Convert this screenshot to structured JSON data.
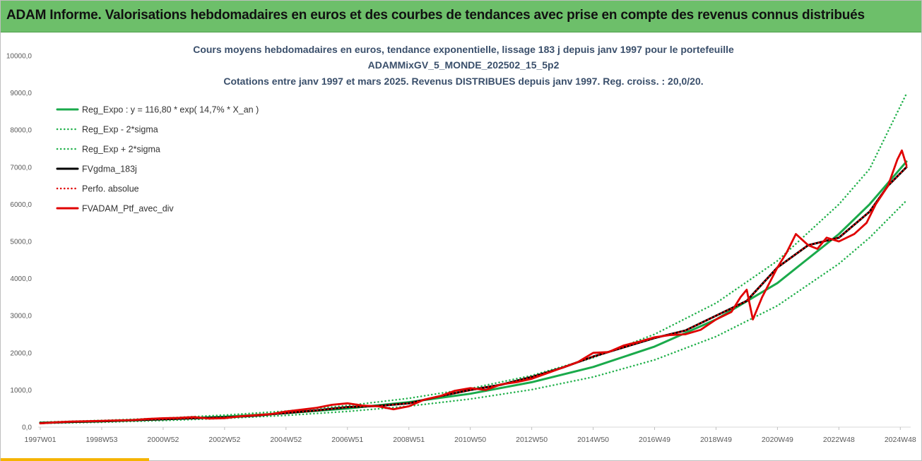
{
  "header": {
    "title": "ADAM Informe. Valorisations hebdomadaires en euros et des courbes de tendances avec prise en compte des revenus connus distribués"
  },
  "colors": {
    "header_bg": "#6dbf6a",
    "reg_expo": "#1aaa4b",
    "reg_sigma": "#22b14c",
    "fvgdma": "#000000",
    "perfo": "#e00000",
    "fvadam": "#e00000"
  },
  "chart_data": {
    "type": "line",
    "title_lines": [
      "Cours moyens hebdomadaires  en euros,  tendance exponentielle, lissage 183 j depuis janv 1997 pour  le portefeuille",
      "ADAMMixGV_5_MONDE_202502_15_5p2",
      "Cotations  entre janv 1997 et mars 2025. Revenus DISTRIBUES depuis janv 1997. Reg. croiss. : 20,0/20."
    ],
    "xlabel": "",
    "ylabel": "",
    "x_range": [
      1997.0,
      2025.2
    ],
    "ylim": [
      0,
      10000
    ],
    "y_ticks": [
      "0,0",
      "1000,0",
      "2000,0",
      "3000,0",
      "4000,0",
      "5000,0",
      "6000,0",
      "7000,0",
      "8000,0",
      "9000,0",
      "10000,0"
    ],
    "x_ticks": [
      {
        "x": 1997.0,
        "label": "1997W01"
      },
      {
        "x": 1999.0,
        "label": "1998W53"
      },
      {
        "x": 2001.0,
        "label": "2000W52"
      },
      {
        "x": 2003.0,
        "label": "2002W52"
      },
      {
        "x": 2005.0,
        "label": "2004W52"
      },
      {
        "x": 2007.0,
        "label": "2006W51"
      },
      {
        "x": 2009.0,
        "label": "2008W51"
      },
      {
        "x": 2011.0,
        "label": "2010W50"
      },
      {
        "x": 2013.0,
        "label": "2012W50"
      },
      {
        "x": 2015.0,
        "label": "2014W50"
      },
      {
        "x": 2017.0,
        "label": "2016W49"
      },
      {
        "x": 2019.0,
        "label": "2018W49"
      },
      {
        "x": 2021.0,
        "label": "2020W49"
      },
      {
        "x": 2023.0,
        "label": "2022W48"
      },
      {
        "x": 2025.0,
        "label": "2024W48"
      }
    ],
    "grid": false,
    "legend_position": "top-left",
    "series": [
      {
        "name": "Reg_Expo : y = 116,80 * exp( 14,7% *  X_an )",
        "style": "solid-thick",
        "color": "#1aaa4b",
        "x": [
          1997,
          1999,
          2001,
          2003,
          2005,
          2007,
          2009,
          2011,
          2013,
          2015,
          2017,
          2019,
          2021,
          2023,
          2024,
          2025.2
        ],
        "values": [
          117,
          156,
          209,
          280,
          375,
          502,
          673,
          900,
          1210,
          1620,
          2170,
          2900,
          3880,
          5200,
          6000,
          7150
        ]
      },
      {
        "name": "Reg_Exp - 2*sigma",
        "style": "dotted",
        "color": "#22b14c",
        "x": [
          1997,
          1999,
          2001,
          2003,
          2005,
          2007,
          2009,
          2011,
          2013,
          2015,
          2017,
          2019,
          2021,
          2023,
          2024,
          2025.2
        ],
        "values": [
          100,
          132,
          176,
          235,
          315,
          422,
          565,
          756,
          1010,
          1350,
          1810,
          2440,
          3270,
          4400,
          5100,
          6100
        ]
      },
      {
        "name": "Reg_Exp + 2*sigma",
        "style": "dotted",
        "color": "#22b14c",
        "x": [
          1997,
          1999,
          2001,
          2003,
          2005,
          2007,
          2009,
          2011,
          2013,
          2015,
          2017,
          2019,
          2021,
          2023,
          2024,
          2025.2
        ],
        "values": [
          134,
          180,
          241,
          323,
          432,
          579,
          776,
          1040,
          1390,
          1870,
          2500,
          3340,
          4480,
          6000,
          6950,
          8980
        ]
      },
      {
        "name": "FVgdma_183j",
        "style": "solid-thick",
        "color": "#000000",
        "x": [
          1997,
          1998,
          1999,
          2000,
          2001,
          2002,
          2003,
          2004,
          2005,
          2006,
          2007,
          2008,
          2009,
          2010,
          2011,
          2012,
          2013,
          2014,
          2015,
          2016,
          2017,
          2018,
          2019,
          2020,
          2021,
          2022,
          2023,
          2024,
          2024.6,
          2025.2
        ],
        "values": [
          110,
          140,
          160,
          185,
          215,
          240,
          260,
          310,
          380,
          450,
          540,
          570,
          640,
          830,
          1000,
          1140,
          1350,
          1600,
          1900,
          2150,
          2400,
          2600,
          3000,
          3400,
          4300,
          4900,
          5100,
          5800,
          6500,
          7000
        ]
      },
      {
        "name": "Perfo. absolue",
        "style": "dotted",
        "color": "#e00000",
        "x": [
          1997,
          1998,
          1999,
          2000,
          2001,
          2002,
          2003,
          2004,
          2005,
          2006,
          2007,
          2008,
          2009,
          2010,
          2011,
          2012,
          2013,
          2014,
          2015,
          2016,
          2017,
          2018,
          2019,
          2020,
          2021,
          2022,
          2023,
          2024,
          2024.6,
          2025.2
        ],
        "values": [
          110,
          140,
          160,
          185,
          215,
          240,
          260,
          310,
          380,
          450,
          540,
          570,
          640,
          830,
          1000,
          1140,
          1350,
          1600,
          1900,
          2150,
          2400,
          2600,
          3000,
          3400,
          4300,
          4900,
          5100,
          5800,
          6500,
          7000
        ]
      },
      {
        "name": "FVADAM_Ptf_avec_div",
        "style": "solid-thick",
        "color": "#e00000",
        "x": [
          1997,
          1997.5,
          1998,
          1998.5,
          1999,
          1999.5,
          2000,
          2000.5,
          2001,
          2001.5,
          2002,
          2002.5,
          2003,
          2003.5,
          2004,
          2004.5,
          2005,
          2005.5,
          2006,
          2006.5,
          2007,
          2007.5,
          2008,
          2008.5,
          2009,
          2009.5,
          2010,
          2010.5,
          2011,
          2011.5,
          2012,
          2012.5,
          2013,
          2013.5,
          2014,
          2014.5,
          2015,
          2015.5,
          2016,
          2016.5,
          2017,
          2017.5,
          2018,
          2018.5,
          2019,
          2019.5,
          2019.8,
          2020.0,
          2020.2,
          2020.5,
          2021,
          2021.3,
          2021.6,
          2022,
          2022.3,
          2022.6,
          2023,
          2023.5,
          2023.9,
          2024.2,
          2024.6,
          2024.9,
          2025.05,
          2025.2
        ],
        "values": [
          100,
          130,
          150,
          160,
          170,
          180,
          190,
          220,
          240,
          250,
          270,
          230,
          240,
          290,
          320,
          350,
          420,
          470,
          520,
          600,
          640,
          580,
          560,
          480,
          560,
          740,
          830,
          980,
          1050,
          1000,
          1150,
          1210,
          1300,
          1450,
          1600,
          1750,
          2000,
          2020,
          2200,
          2300,
          2420,
          2480,
          2500,
          2620,
          2900,
          3100,
          3500,
          3700,
          2900,
          3500,
          4300,
          4700,
          5200,
          4900,
          4800,
          5100,
          5000,
          5200,
          5500,
          6000,
          6500,
          7200,
          7450,
          7050
        ]
      }
    ]
  }
}
